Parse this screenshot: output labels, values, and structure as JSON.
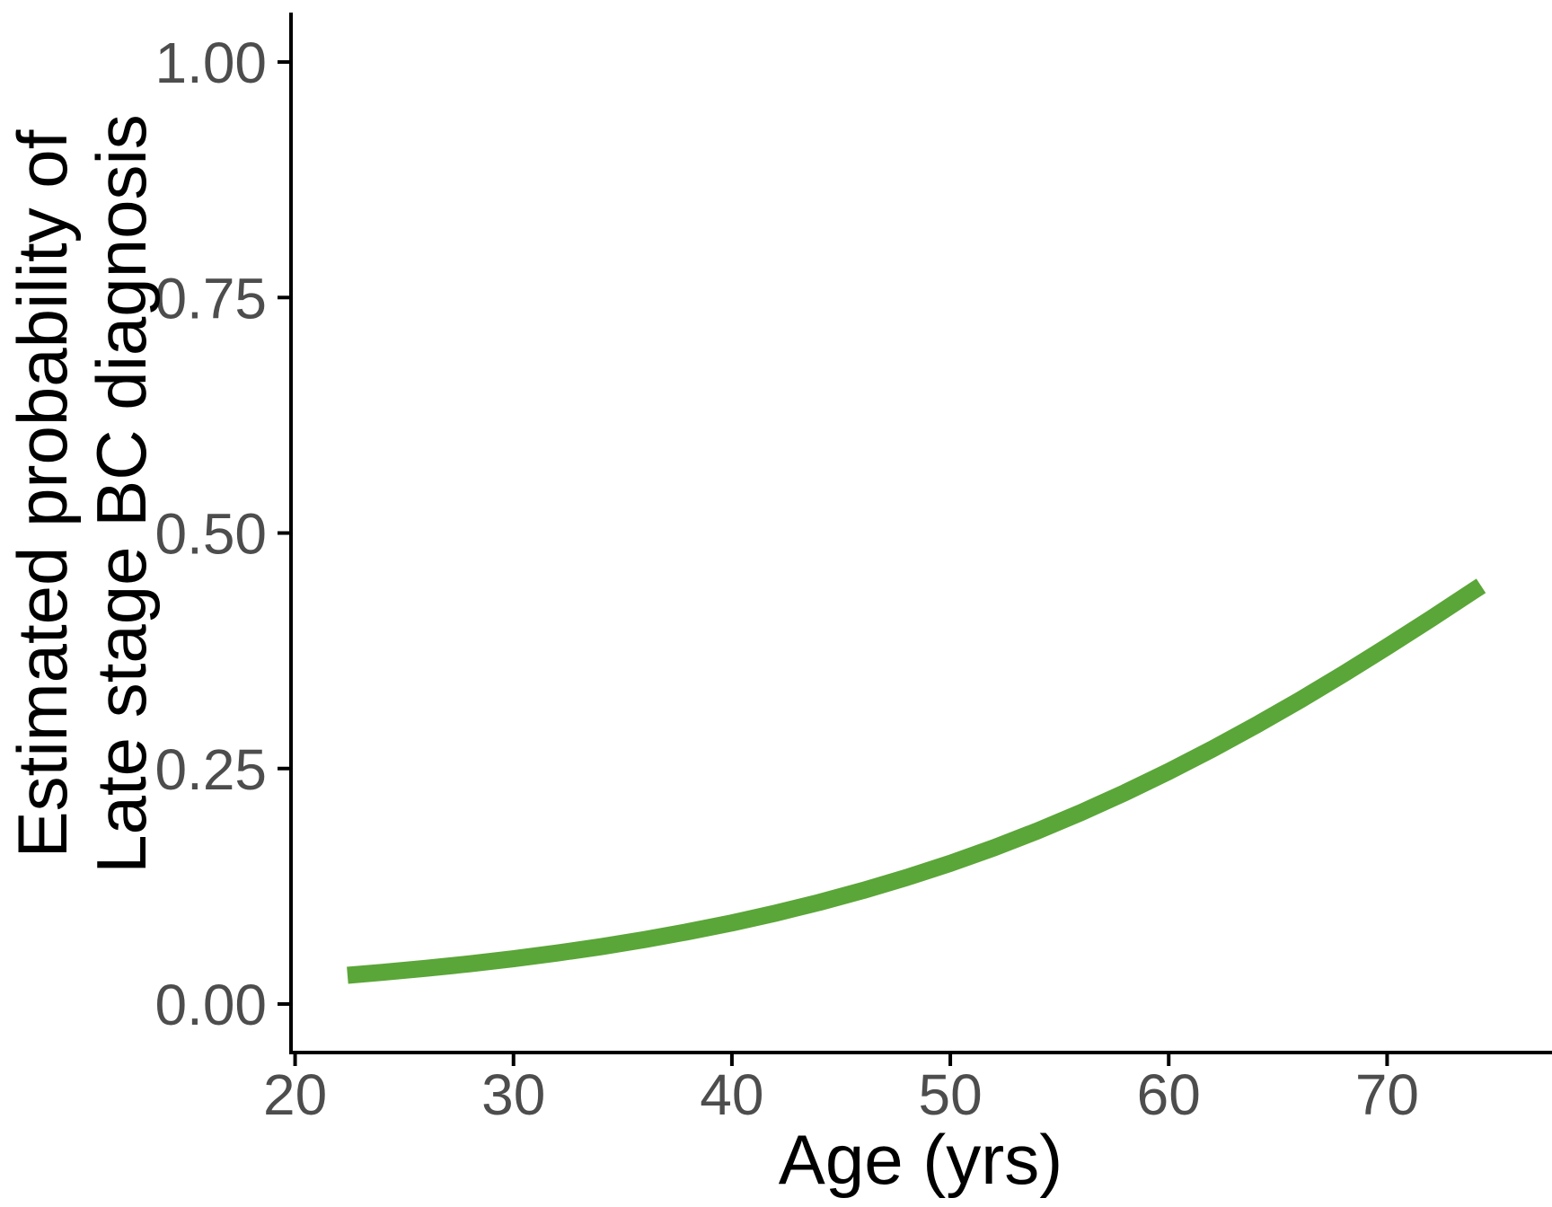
{
  "figure": {
    "background": "#ffffff"
  },
  "chart_data": {
    "type": "line",
    "title": "",
    "xlabel": "Age (yrs)",
    "ylabel_lines": [
      "Estimated probability of",
      "Late stage BC diagnosis"
    ],
    "x_ticks": {
      "values": [
        20,
        30,
        40,
        50,
        60,
        70
      ],
      "labels": [
        "20",
        "30",
        "40",
        "50",
        "60",
        "70"
      ]
    },
    "y_ticks": {
      "values": [
        0,
        0.25,
        0.5,
        0.75,
        1
      ],
      "labels": [
        "0.00",
        "0.25",
        "0.50",
        "0.75",
        "1.00"
      ]
    },
    "xlim": [
      19.73,
      77.55
    ],
    "ylim": [
      -0.0515,
      1.0525
    ],
    "grid": false,
    "legend": "none",
    "style": {
      "line_color": "#5aa638",
      "axis_color": "#000000",
      "tick_label_color": "#4d4d4d",
      "title_color": "#000000"
    },
    "series": [
      {
        "name": "Estimated probability of late stage BC diagnosis",
        "x": [
          22.4,
          24,
          26,
          28,
          30,
          32,
          34,
          36,
          38,
          40,
          42,
          44,
          46,
          48,
          50,
          52,
          54,
          56,
          58,
          60,
          62,
          64,
          66,
          68,
          70,
          72,
          74,
          74.3
        ],
        "y": [
          0.0305,
          0.0336,
          0.0379,
          0.0427,
          0.048,
          0.0541,
          0.0608,
          0.0684,
          0.0768,
          0.0861,
          0.0965,
          0.1079,
          0.1205,
          0.1343,
          0.1494,
          0.1659,
          0.1839,
          0.2034,
          0.2244,
          0.2468,
          0.2707,
          0.296,
          0.3225,
          0.3503,
          0.3792,
          0.4089,
          0.4394,
          0.444
        ]
      }
    ]
  }
}
